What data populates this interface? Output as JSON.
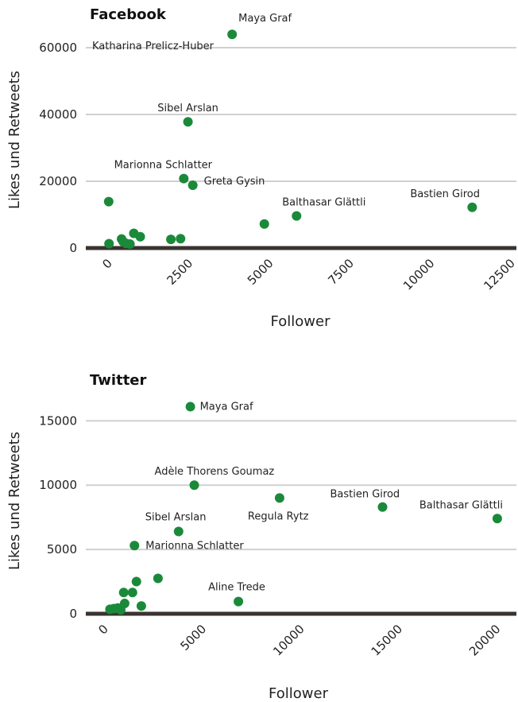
{
  "chart_data": [
    {
      "type": "scatter",
      "title": "Facebook",
      "xlabel": "Follower",
      "ylabel": "Likes und Retweets",
      "xlim": [
        0,
        12500
      ],
      "ylim": [
        0,
        65000
      ],
      "xticks": [
        0,
        2500,
        5000,
        7500,
        10000,
        12500
      ],
      "xtick_labels": [
        "0",
        "2500",
        "5000",
        "7500",
        "10000",
        "12500"
      ],
      "yticks": [
        0,
        20000,
        40000,
        60000
      ],
      "ytick_labels": [
        "0",
        "20000",
        "40000",
        "60000"
      ],
      "grid": true,
      "point_color": "#1a8a3a",
      "points": [
        {
          "x": 3850,
          "y": 64000,
          "label": "Maya Graf"
        },
        {
          "x": 2480,
          "y": 37800,
          "label": "Sibel Arslan"
        },
        {
          "x": 2350,
          "y": 20800,
          "label": "Marionna Schlatter"
        },
        {
          "x": 2630,
          "y": 18800,
          "label": "Greta Gysin"
        },
        {
          "x": 5850,
          "y": 9600,
          "label": "Balthasar Glättli"
        },
        {
          "x": 11300,
          "y": 12200,
          "label": "Bastien Girod"
        },
        {
          "x": 4850,
          "y": 7200
        },
        {
          "x": 20,
          "y": 13900
        },
        {
          "x": 30,
          "y": 1300
        },
        {
          "x": 420,
          "y": 2700
        },
        {
          "x": 470,
          "y": 1900
        },
        {
          "x": 560,
          "y": 1400
        },
        {
          "x": 680,
          "y": 1200
        },
        {
          "x": 800,
          "y": 4400
        },
        {
          "x": 1000,
          "y": 3400
        },
        {
          "x": 1950,
          "y": 2600
        },
        {
          "x": 2250,
          "y": 2800
        }
      ],
      "annotations": [
        {
          "text": "Katharina Prelicz-Huber",
          "x": 2800,
          "y": 61500
        }
      ]
    },
    {
      "type": "scatter",
      "title": "Twitter",
      "xlabel": "Follower",
      "ylabel": "Likes und Retweets",
      "xlim": [
        0,
        20500
      ],
      "ylim": [
        0,
        17000
      ],
      "xticks": [
        0,
        5000,
        10000,
        15000,
        20000
      ],
      "xtick_labels": [
        "0",
        "5000",
        "10000",
        "15000",
        "20000"
      ],
      "yticks": [
        0,
        5000,
        10000,
        15000
      ],
      "ytick_labels": [
        "0",
        "5000",
        "10000",
        "15000"
      ],
      "grid": true,
      "point_color": "#1a8a3a",
      "points": [
        {
          "x": 4400,
          "y": 16100,
          "label": "Maya Graf"
        },
        {
          "x": 4600,
          "y": 10000,
          "label": "Adèle Thorens Goumaz"
        },
        {
          "x": 8950,
          "y": 9000,
          "label": "Regula Rytz"
        },
        {
          "x": 14200,
          "y": 8300,
          "label": "Bastien Girod"
        },
        {
          "x": 20050,
          "y": 7400,
          "label": "Balthasar Glättli"
        },
        {
          "x": 3800,
          "y": 6400,
          "label": "Sibel Arslan"
        },
        {
          "x": 1550,
          "y": 5300,
          "label": "Marionna Schlatter"
        },
        {
          "x": 6850,
          "y": 950,
          "label": "Aline Trede"
        },
        {
          "x": 2750,
          "y": 2750
        },
        {
          "x": 1650,
          "y": 2500
        },
        {
          "x": 1000,
          "y": 1650
        },
        {
          "x": 1450,
          "y": 1650
        },
        {
          "x": 1050,
          "y": 800
        },
        {
          "x": 1900,
          "y": 600
        },
        {
          "x": 300,
          "y": 350
        },
        {
          "x": 500,
          "y": 400
        },
        {
          "x": 700,
          "y": 450
        },
        {
          "x": 850,
          "y": 300
        }
      ],
      "annotations": []
    }
  ]
}
